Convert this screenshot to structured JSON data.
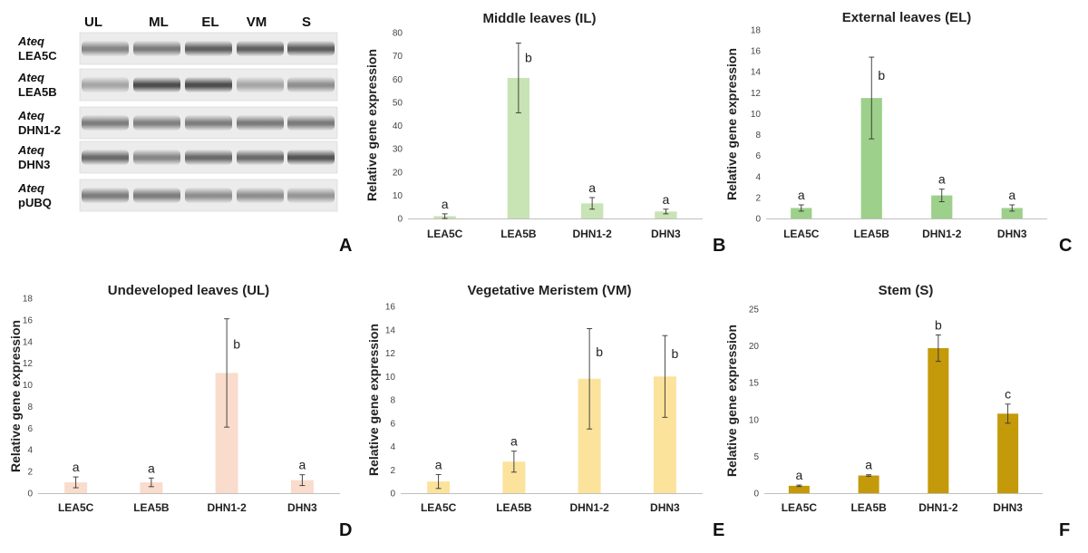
{
  "gel": {
    "lanes": [
      "UL",
      "ML",
      "EL",
      "VM",
      "S"
    ],
    "rows": [
      {
        "species": "Ateq",
        "gene": "LEA5C",
        "intensity": [
          0.55,
          0.62,
          0.78,
          0.78,
          0.8
        ]
      },
      {
        "species": "Ateq",
        "gene": "LEA5B",
        "intensity": [
          0.35,
          0.9,
          0.9,
          0.35,
          0.5
        ]
      },
      {
        "species": "Ateq",
        "gene": "DHN1-2",
        "intensity": [
          0.6,
          0.58,
          0.6,
          0.62,
          0.62
        ]
      },
      {
        "species": "Ateq",
        "gene": "DHN3",
        "intensity": [
          0.72,
          0.55,
          0.72,
          0.72,
          0.85
        ]
      },
      {
        "species": "Ateq",
        "gene": "pUBQ",
        "intensity": [
          0.6,
          0.6,
          0.5,
          0.5,
          0.45
        ]
      }
    ],
    "panel_letter": "A"
  },
  "chart_data": [
    {
      "type": "bar",
      "panel": "B",
      "title": "Middle leaves (IL)",
      "ylabel": "Relative gene expression",
      "categories": [
        "LEA5C",
        "LEA5B",
        "DHN1-2",
        "DHN3"
      ],
      "values": [
        1,
        60.5,
        6.5,
        3
      ],
      "errors": [
        1,
        15,
        2.5,
        1
      ],
      "letters": [
        "a",
        "b",
        "a",
        "a"
      ],
      "ylim": [
        0,
        80
      ],
      "yticks": [
        0,
        10,
        20,
        30,
        40,
        50,
        60,
        70,
        80
      ],
      "color": "#c8e3b4"
    },
    {
      "type": "bar",
      "panel": "C",
      "title": "External leaves (EL)",
      "ylabel": "Relative gene expression",
      "categories": [
        "LEA5C",
        "LEA5B",
        "DHN1-2",
        "DHN3"
      ],
      "values": [
        1,
        11.5,
        2.2,
        1
      ],
      "errors": [
        0.3,
        3.9,
        0.6,
        0.3
      ],
      "letters": [
        "a",
        "b",
        "a",
        "a"
      ],
      "ylim": [
        0,
        18
      ],
      "yticks": [
        0,
        2,
        4,
        6,
        8,
        10,
        12,
        14,
        16,
        18
      ],
      "color": "#9dd08a"
    },
    {
      "type": "bar",
      "panel": "D",
      "title": "Undeveloped leaves (UL)",
      "ylabel": "Relative gene expression",
      "categories": [
        "LEA5C",
        "LEA5B",
        "DHN1-2",
        "DHN3"
      ],
      "values": [
        1,
        1,
        11.1,
        1.2
      ],
      "errors": [
        0.5,
        0.4,
        5,
        0.5
      ],
      "letters": [
        "a",
        "a",
        "b",
        "a"
      ],
      "ylim": [
        0,
        18
      ],
      "yticks": [
        0,
        2,
        4,
        6,
        8,
        10,
        12,
        14,
        16,
        18
      ],
      "color": "#f9dccc"
    },
    {
      "type": "bar",
      "panel": "E",
      "title": "Vegetative Meristem (VM)",
      "ylabel": "Relative gene expression",
      "categories": [
        "LEA5C",
        "LEA5B",
        "DHN1-2",
        "DHN3"
      ],
      "values": [
        1,
        2.7,
        9.8,
        10
      ],
      "errors": [
        0.6,
        0.9,
        4.3,
        3.5
      ],
      "letters": [
        "a",
        "a",
        "b",
        "b"
      ],
      "ylim": [
        0,
        16
      ],
      "yticks": [
        0,
        2,
        4,
        6,
        8,
        10,
        12,
        14,
        16
      ],
      "color": "#fbe39c"
    },
    {
      "type": "bar",
      "panel": "F",
      "title": "Stem (S)",
      "ylabel": "Relative gene expression",
      "categories": [
        "LEA5C",
        "LEA5B",
        "DHN1-2",
        "DHN3"
      ],
      "values": [
        1,
        2.4,
        19.7,
        10.8
      ],
      "errors": [
        0.1,
        0.1,
        1.8,
        1.3
      ],
      "letters": [
        "a",
        "a",
        "b",
        "c"
      ],
      "ylim": [
        0,
        25
      ],
      "yticks": [
        0,
        5,
        10,
        15,
        20,
        25
      ],
      "color": "#c49a0a"
    }
  ]
}
